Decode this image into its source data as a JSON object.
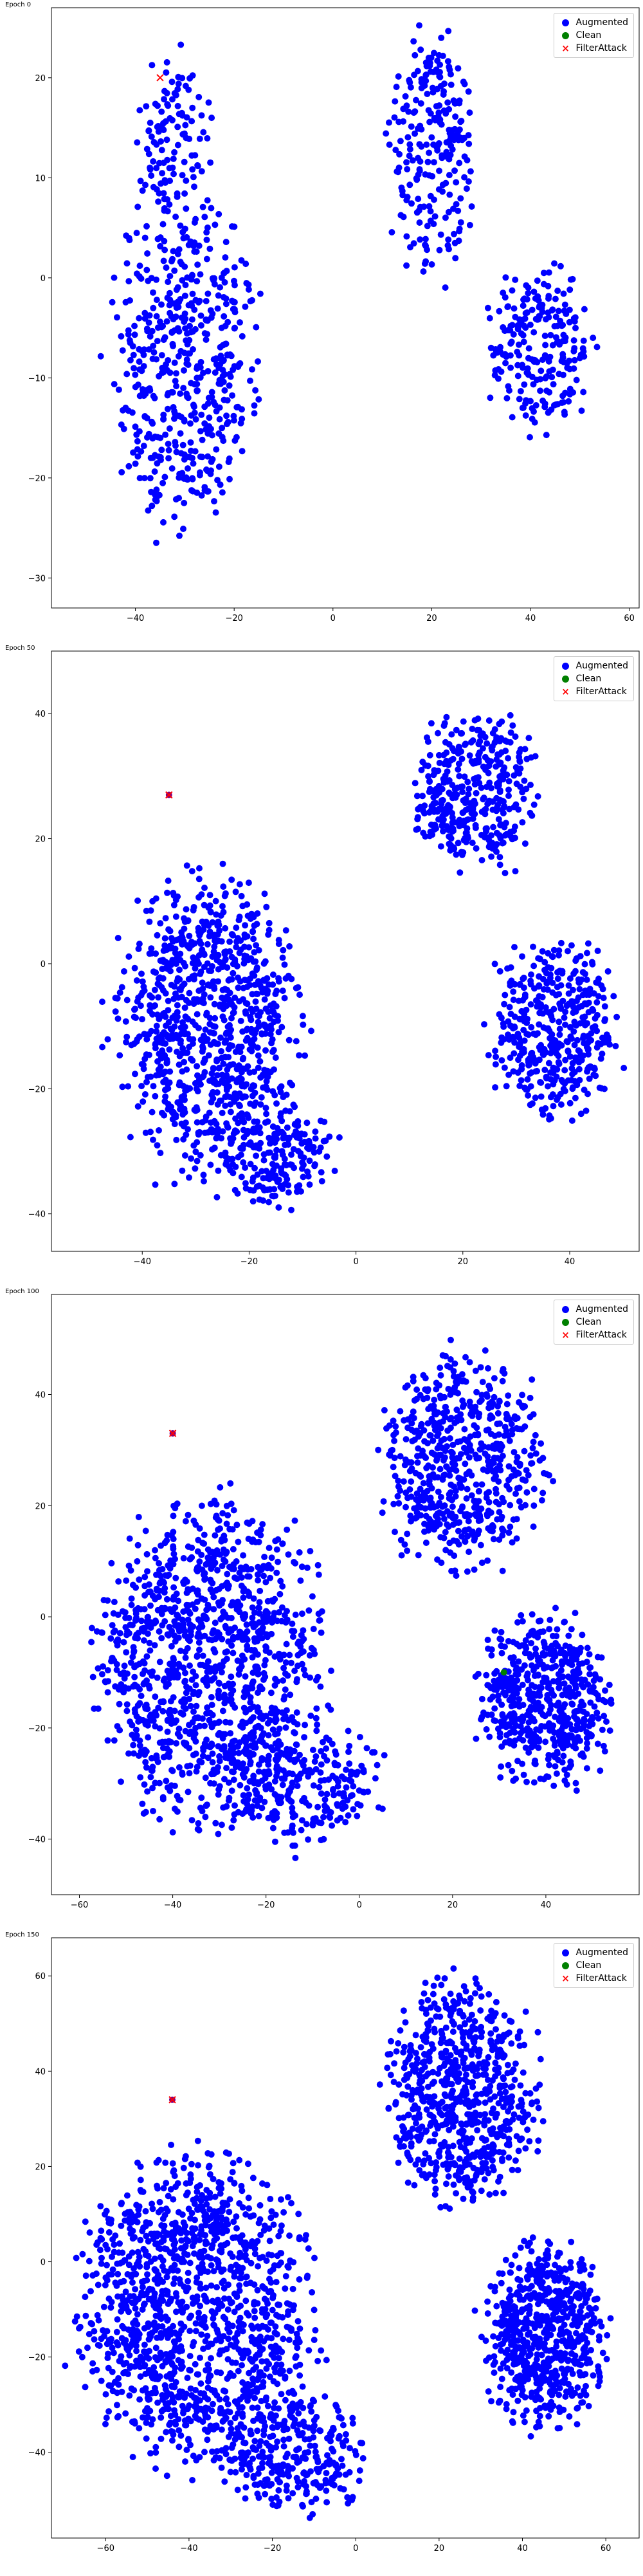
{
  "chart_data": [
    {
      "type": "scatter",
      "title": "Epoch 0",
      "xlim": [
        -57,
        62
      ],
      "ylim": [
        -33,
        27
      ],
      "xticks": [
        -40,
        -20,
        0,
        20,
        40,
        60
      ],
      "yticks": [
        -30,
        -20,
        -10,
        0,
        10,
        20
      ],
      "grid": false,
      "legend_position": "top-right",
      "legend": [
        "Augmented",
        "Clean",
        "FilterAttack"
      ],
      "colors": {
        "Augmented": "#0000ff",
        "Clean": "#008000",
        "FilterAttack": "#ff0000"
      },
      "clusters": [
        {
          "cx": -30,
          "cy": -8,
          "rx": 17,
          "ry": 20,
          "n": 520
        },
        {
          "cx": -32,
          "cy": 14,
          "rx": 9,
          "ry": 10,
          "n": 110
        },
        {
          "cx": 20,
          "cy": 12,
          "rx": 10,
          "ry": 14,
          "n": 240
        },
        {
          "cx": 42,
          "cy": -7,
          "rx": 12,
          "ry": 9,
          "n": 230
        }
      ],
      "series": [
        {
          "name": "FilterAttack",
          "marker": "x",
          "points": [
            [
              -35,
              20
            ]
          ]
        },
        {
          "name": "Clean",
          "marker": "o",
          "points": []
        }
      ]
    },
    {
      "type": "scatter",
      "title": "Epoch 50",
      "xlim": [
        -57,
        53
      ],
      "ylim": [
        -46,
        50
      ],
      "xticks": [
        -40,
        -20,
        0,
        20,
        40
      ],
      "yticks": [
        -40,
        -20,
        0,
        20,
        40
      ],
      "grid": false,
      "legend_position": "top-right",
      "legend": [
        "Augmented",
        "Clean",
        "FilterAttack"
      ],
      "colors": {
        "Augmented": "#0000ff",
        "Clean": "#008000",
        "FilterAttack": "#ff0000"
      },
      "clusters": [
        {
          "cx": -28,
          "cy": -10,
          "rx": 20,
          "ry": 28,
          "n": 900
        },
        {
          "cx": -15,
          "cy": -30,
          "rx": 12,
          "ry": 9,
          "n": 200
        },
        {
          "cx": 22,
          "cy": 28,
          "rx": 14,
          "ry": 14,
          "n": 380
        },
        {
          "cx": 37,
          "cy": -10,
          "rx": 14,
          "ry": 16,
          "n": 420
        }
      ],
      "series": [
        {
          "name": "FilterAttack",
          "marker": "x",
          "points": [
            [
              -35,
              27
            ]
          ]
        },
        {
          "name": "Clean",
          "marker": "o",
          "points": []
        }
      ]
    },
    {
      "type": "scatter",
      "title": "Epoch 100",
      "xlim": [
        -66,
        60
      ],
      "ylim": [
        -50,
        58
      ],
      "xticks": [
        -60,
        -40,
        -20,
        0,
        20,
        40
      ],
      "yticks": [
        -40,
        -20,
        0,
        20,
        40
      ],
      "grid": false,
      "legend_position": "top-right",
      "legend": [
        "Augmented",
        "Clean",
        "FilterAttack"
      ],
      "colors": {
        "Augmented": "#0000ff",
        "Clean": "#008000",
        "FilterAttack": "#ff0000"
      },
      "clusters": [
        {
          "cx": -32,
          "cy": -8,
          "rx": 28,
          "ry": 34,
          "n": 1150
        },
        {
          "cx": -12,
          "cy": -30,
          "rx": 18,
          "ry": 14,
          "n": 250
        },
        {
          "cx": 22,
          "cy": 28,
          "rx": 20,
          "ry": 22,
          "n": 600
        },
        {
          "cx": 40,
          "cy": -15,
          "rx": 16,
          "ry": 18,
          "n": 550
        }
      ],
      "series": [
        {
          "name": "FilterAttack",
          "marker": "x",
          "points": [
            [
              -40,
              33
            ]
          ]
        },
        {
          "name": "Clean",
          "marker": "o",
          "points": [
            [
              31,
              -10
            ]
          ]
        }
      ]
    },
    {
      "type": "scatter",
      "title": "Epoch 150",
      "xlim": [
        -73,
        68
      ],
      "ylim": [
        -58,
        68
      ],
      "xticks": [
        -60,
        -40,
        -20,
        0,
        20,
        40,
        60
      ],
      "yticks": [
        -40,
        -20,
        0,
        20,
        40,
        60
      ],
      "grid": false,
      "legend_position": "top-right",
      "legend": [
        "Augmented",
        "Clean",
        "FilterAttack"
      ],
      "colors": {
        "Augmented": "#0000ff",
        "Clean": "#008000",
        "FilterAttack": "#ff0000"
      },
      "clusters": [
        {
          "cx": -38,
          "cy": -10,
          "rx": 33,
          "ry": 38,
          "n": 1300
        },
        {
          "cx": -15,
          "cy": -40,
          "rx": 20,
          "ry": 15,
          "n": 300
        },
        {
          "cx": 25,
          "cy": 35,
          "rx": 22,
          "ry": 27,
          "n": 700
        },
        {
          "cx": 45,
          "cy": -15,
          "rx": 17,
          "ry": 22,
          "n": 650
        }
      ],
      "series": [
        {
          "name": "FilterAttack",
          "marker": "x",
          "points": [
            [
              -44,
              34
            ]
          ]
        },
        {
          "name": "Clean",
          "marker": "o",
          "points": []
        }
      ]
    }
  ]
}
